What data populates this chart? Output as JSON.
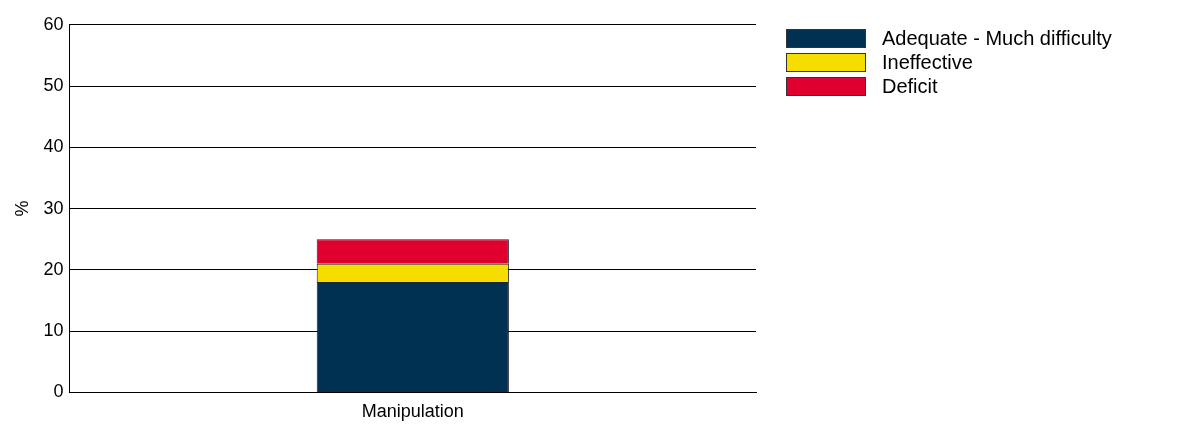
{
  "chart_data": {
    "type": "bar",
    "ylabel": "%",
    "categories": [
      "Manipulation"
    ],
    "stacked": true,
    "ylim": [
      0,
      60
    ],
    "yticks": [
      0,
      10,
      20,
      30,
      40,
      50,
      60
    ],
    "grid": "y",
    "legend": "top right",
    "series": [
      {
        "name": "Adequate - Much difficulty",
        "color": "#003153",
        "values": [
          18
        ]
      },
      {
        "name": "Ineffective",
        "color": "#f5dd00",
        "values": [
          3
        ]
      },
      {
        "name": "Deficit",
        "color": "#e0002f",
        "values": [
          4
        ]
      }
    ]
  }
}
